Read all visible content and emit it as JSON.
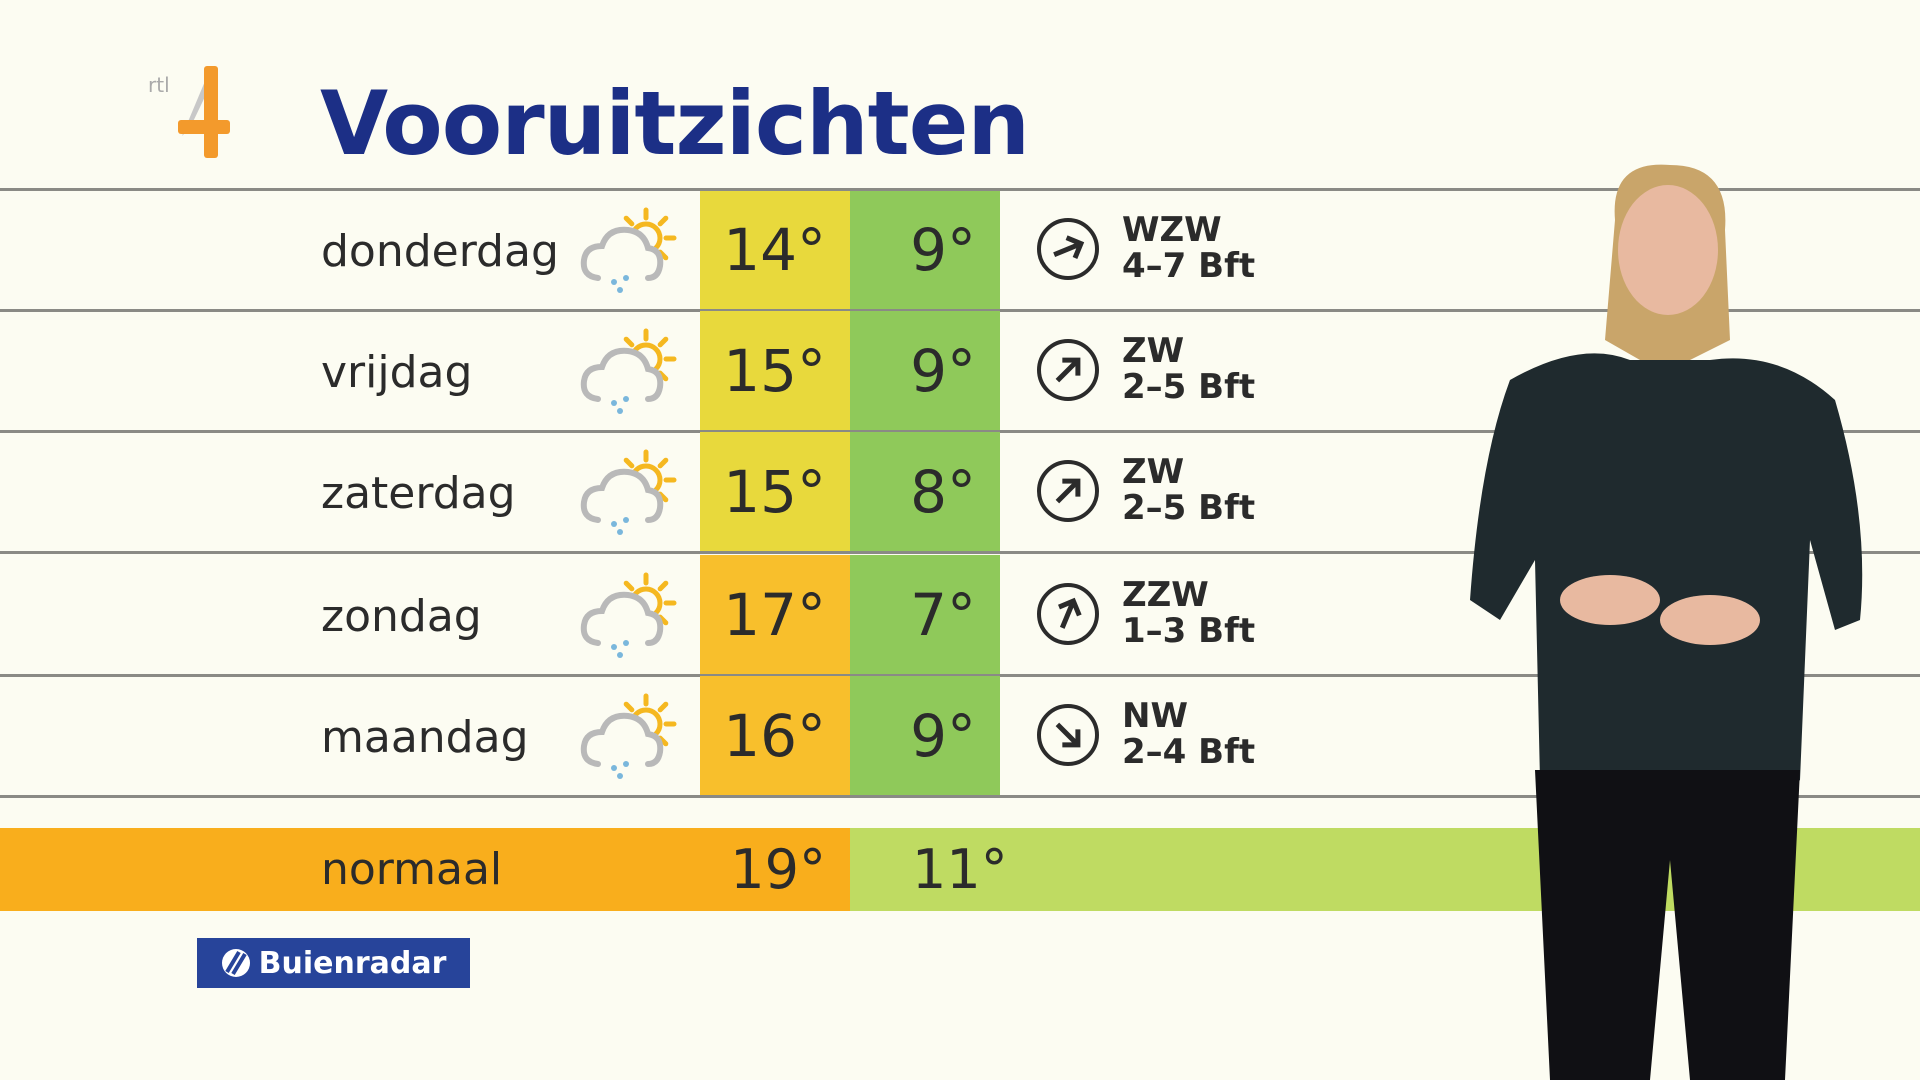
{
  "header": {
    "title": "Vooruitzichten",
    "channel_logo": "RTL 4"
  },
  "forecast": [
    {
      "day": "donderdag",
      "icon": "cloud-sun-rain-icon",
      "max": "14°",
      "min": "9°",
      "wind_dir": "WZW",
      "wind_force": "4–7 Bft",
      "max_color": "#e8d93c",
      "rotation": 67.5
    },
    {
      "day": "vrijdag",
      "icon": "cloud-sun-rain-icon",
      "max": "15°",
      "min": "9°",
      "wind_dir": "ZW",
      "wind_force": "2–5 Bft",
      "max_color": "#e8d93c",
      "rotation": 45
    },
    {
      "day": "zaterdag",
      "icon": "cloud-sun-rain-icon",
      "max": "15°",
      "min": "8°",
      "wind_dir": "ZW",
      "wind_force": "2–5 Bft",
      "max_color": "#e8d93c",
      "rotation": 45
    },
    {
      "day": "zondag",
      "icon": "cloud-sun-rain-icon",
      "max": "17°",
      "min": "7°",
      "wind_dir": "ZZW",
      "wind_force": "1–3 Bft",
      "max_color": "#f8bf2c",
      "rotation": 22.5
    },
    {
      "day": "maandag",
      "icon": "cloud-sun-rain-icon",
      "max": "16°",
      "min": "9°",
      "wind_dir": "NW",
      "wind_force": "2–4 Bft",
      "max_color": "#f8bf2c",
      "rotation": 135
    }
  ],
  "normal": {
    "label": "normaal",
    "max": "19°",
    "min": "11°"
  },
  "sponsor": {
    "label": "Buienradar"
  },
  "colors": {
    "title": "#1c2f86",
    "min_column": "#8fc95a",
    "normal_max": "#f9ae1c",
    "normal_min": "#bfdb62",
    "sponsor_bg": "#27449a"
  }
}
